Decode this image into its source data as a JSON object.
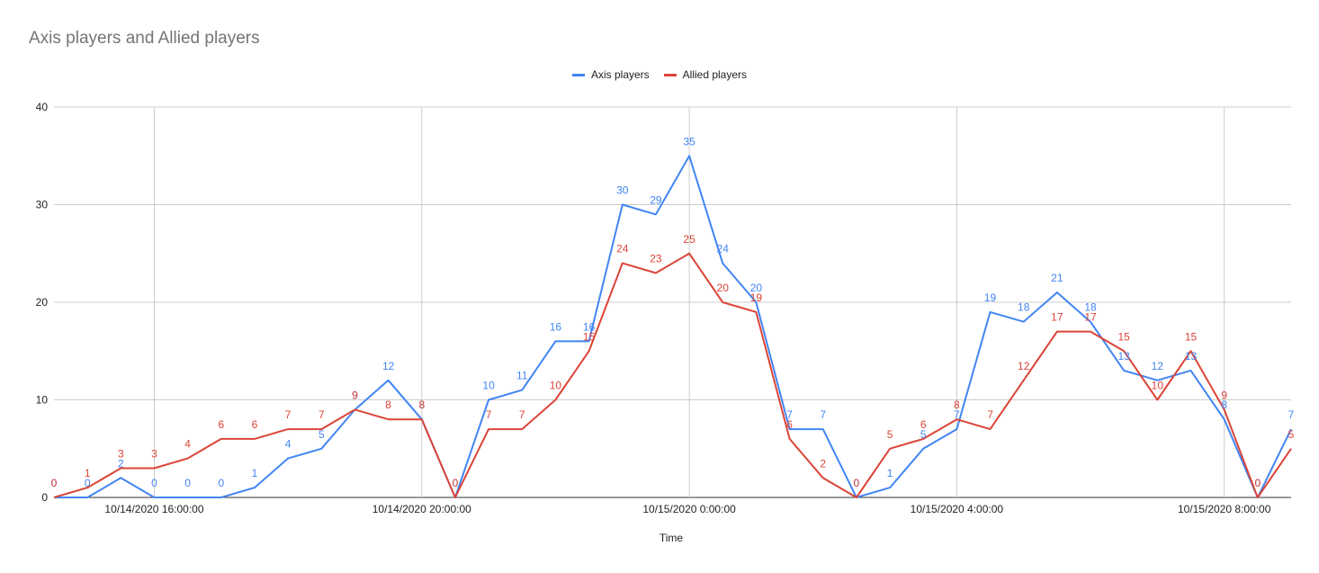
{
  "title": "Axis players and Allied players",
  "chart_data": {
    "type": "line",
    "title": "Axis players and Allied players",
    "xlabel": "Time",
    "ylabel": "",
    "ylim": [
      0,
      40
    ],
    "yticks": [
      0,
      10,
      20,
      30,
      40
    ],
    "x_tick_labels": [
      "10/14/2020 16:00:00",
      "10/14/2020 20:00:00",
      "10/15/2020 0:00:00",
      "10/15/2020 4:00:00",
      "10/15/2020 8:00:00"
    ],
    "x_tick_index": [
      3,
      11,
      19,
      27,
      35
    ],
    "grid": true,
    "legend_position": "top",
    "categories": [
      "10/14/2020 14:30:00",
      "10/14/2020 15:00:00",
      "10/14/2020 15:30:00",
      "10/14/2020 16:00:00",
      "10/14/2020 16:30:00",
      "10/14/2020 17:00:00",
      "10/14/2020 17:30:00",
      "10/14/2020 18:00:00",
      "10/14/2020 18:30:00",
      "10/14/2020 19:00:00",
      "10/14/2020 19:30:00",
      "10/14/2020 20:00:00",
      "10/14/2020 20:30:00",
      "10/14/2020 21:00:00",
      "10/14/2020 21:30:00",
      "10/14/2020 22:00:00",
      "10/14/2020 22:30:00",
      "10/14/2020 23:00:00",
      "10/14/2020 23:30:00",
      "10/15/2020 0:00:00",
      "10/15/2020 0:30:00",
      "10/15/2020 1:00:00",
      "10/15/2020 1:30:00",
      "10/15/2020 2:00:00",
      "10/15/2020 2:30:00",
      "10/15/2020 3:00:00",
      "10/15/2020 3:30:00",
      "10/15/2020 4:00:00",
      "10/15/2020 4:30:00",
      "10/15/2020 5:00:00",
      "10/15/2020 5:30:00",
      "10/15/2020 6:00:00",
      "10/15/2020 6:30:00",
      "10/15/2020 7:00:00",
      "10/15/2020 7:30:00",
      "10/15/2020 8:00:00",
      "10/15/2020 8:30:00",
      "10/15/2020 9:00:00"
    ],
    "series": [
      {
        "name": "Axis players",
        "color": "#4285f4",
        "values": [
          0,
          0,
          2,
          0,
          0,
          0,
          1,
          4,
          5,
          9,
          12,
          8,
          0,
          10,
          11,
          16,
          16,
          30,
          29,
          35,
          24,
          20,
          7,
          7,
          0,
          1,
          5,
          7,
          19,
          18,
          21,
          18,
          13,
          12,
          13,
          8,
          0,
          7
        ]
      },
      {
        "name": "Allied players",
        "color": "#db4437",
        "values": [
          0,
          1,
          3,
          3,
          4,
          6,
          6,
          7,
          7,
          9,
          8,
          8,
          0,
          7,
          7,
          10,
          15,
          24,
          23,
          25,
          20,
          19,
          6,
          2,
          0,
          5,
          6,
          8,
          7,
          12,
          17,
          17,
          15,
          10,
          15,
          9,
          0,
          5
        ]
      }
    ]
  }
}
